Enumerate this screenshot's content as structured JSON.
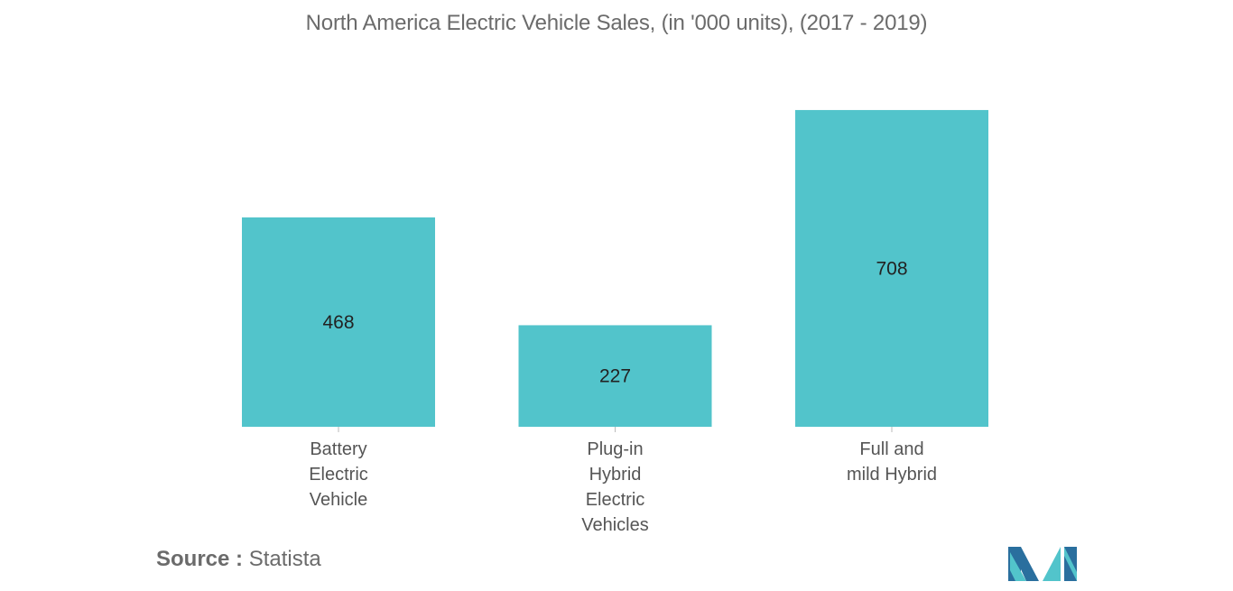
{
  "chart_data": {
    "type": "bar",
    "title": "North America Electric Vehicle Sales, (in '000 units), (2017 - 2019)",
    "categories": [
      [
        "Battery",
        "Electric",
        "Vehicle"
      ],
      [
        "Plug-in",
        "Hybrid",
        "Electric",
        "Vehicles"
      ],
      [
        "Full and",
        "mild Hybrid"
      ]
    ],
    "values": [
      468,
      227,
      708
    ],
    "data_labels": [
      "468",
      "227",
      "708"
    ],
    "ylim": [
      0,
      720
    ],
    "grid": false,
    "bar_color": "#52c4cb"
  },
  "source": {
    "label": "Source :",
    "value": "Statista"
  },
  "logo": {
    "icon": "mordor-intelligence-logo-icon",
    "colors": [
      "#2a6f9e",
      "#52c4cb"
    ]
  }
}
